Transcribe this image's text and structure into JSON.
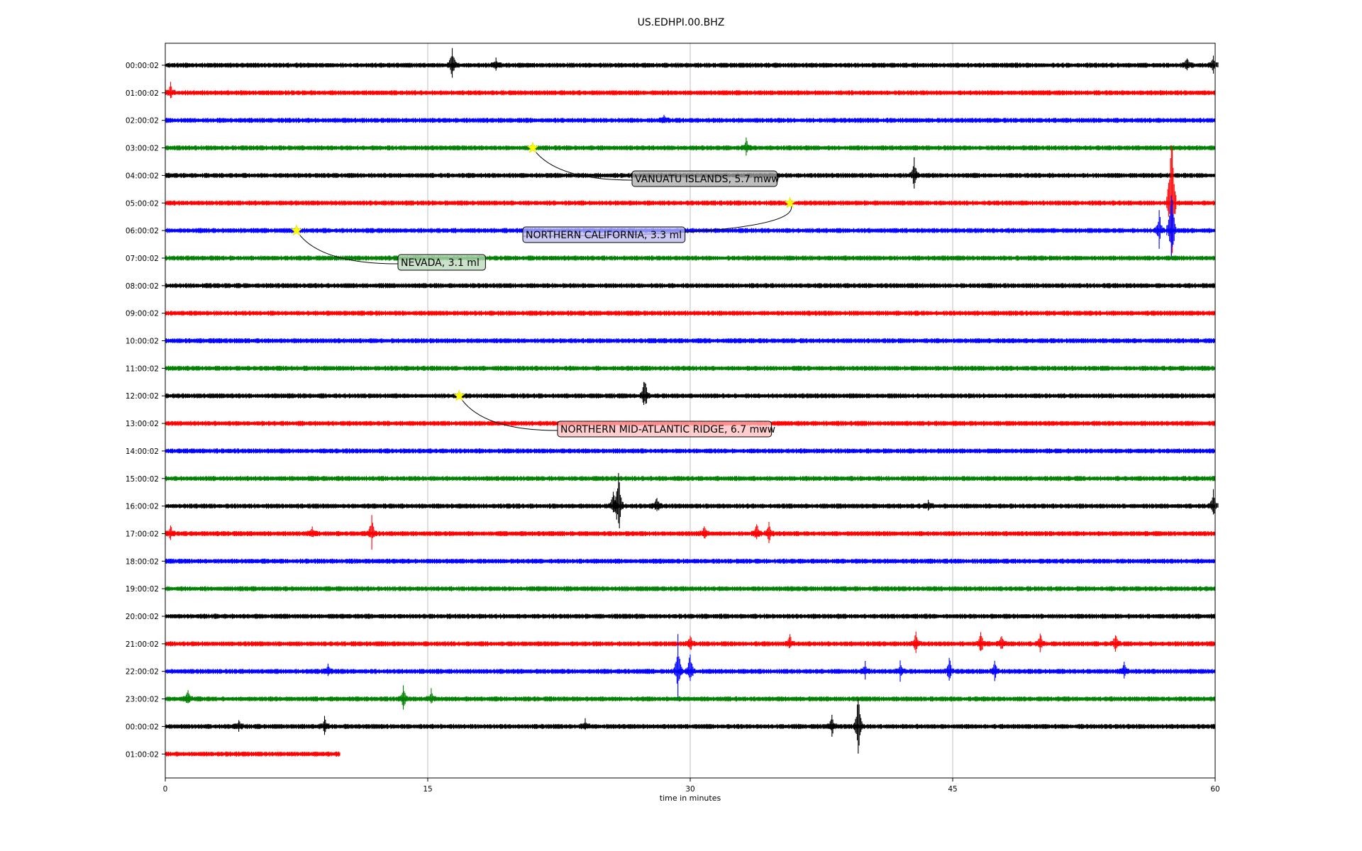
{
  "chart_data": {
    "type": "line",
    "title": "US.EDHPI.00.BHZ",
    "xlabel": "time in minutes",
    "ylabel": "",
    "xlim": [
      0,
      60
    ],
    "x_ticks": [
      0,
      15,
      30,
      45,
      60
    ],
    "grid": "vertical",
    "trace_colors": [
      "#000000",
      "#ff0000",
      "#0000ff",
      "#008000"
    ],
    "rows": [
      {
        "label": "00:00:02",
        "end_minute": 60,
        "events": [
          {
            "minute": 16.4,
            "amp": 1.0
          },
          {
            "minute": 18.9,
            "amp": 0.4
          },
          {
            "minute": 58.4,
            "amp": 0.5
          },
          {
            "minute": 59.9,
            "amp": 0.5
          }
        ]
      },
      {
        "label": "01:00:02",
        "end_minute": 60,
        "events": [
          {
            "minute": 0.3,
            "amp": 0.5
          }
        ]
      },
      {
        "label": "02:00:02",
        "end_minute": 60,
        "events": [
          {
            "minute": 28.5,
            "amp": 0.3
          }
        ]
      },
      {
        "label": "03:00:02",
        "end_minute": 60,
        "events": [
          {
            "minute": 33.2,
            "amp": 0.5
          }
        ]
      },
      {
        "label": "04:00:02",
        "end_minute": 60,
        "events": [
          {
            "minute": 42.8,
            "amp": 0.9
          }
        ]
      },
      {
        "label": "05:00:02",
        "end_minute": 60,
        "events": [
          {
            "minute": 57.5,
            "amp": 4.0
          }
        ]
      },
      {
        "label": "06:00:02",
        "end_minute": 60,
        "events": [
          {
            "minute": 56.8,
            "amp": 1.0
          },
          {
            "minute": 57.5,
            "amp": 2.5
          }
        ]
      },
      {
        "label": "07:00:02",
        "end_minute": 60,
        "events": []
      },
      {
        "label": "08:00:02",
        "end_minute": 60,
        "events": []
      },
      {
        "label": "09:00:02",
        "end_minute": 60,
        "events": []
      },
      {
        "label": "10:00:02",
        "end_minute": 60,
        "events": []
      },
      {
        "label": "11:00:02",
        "end_minute": 60,
        "events": []
      },
      {
        "label": "12:00:02",
        "end_minute": 60,
        "events": [
          {
            "minute": 27.4,
            "amp": 1.0
          }
        ]
      },
      {
        "label": "13:00:02",
        "end_minute": 60,
        "events": []
      },
      {
        "label": "14:00:02",
        "end_minute": 60,
        "events": []
      },
      {
        "label": "15:00:02",
        "end_minute": 60,
        "events": []
      },
      {
        "label": "16:00:02",
        "end_minute": 60,
        "events": [
          {
            "minute": 25.6,
            "amp": 0.8
          },
          {
            "minute": 25.9,
            "amp": 1.9
          },
          {
            "minute": 28.1,
            "amp": 0.5
          },
          {
            "minute": 43.6,
            "amp": 0.3
          },
          {
            "minute": 59.9,
            "amp": 0.8
          }
        ]
      },
      {
        "label": "17:00:02",
        "end_minute": 60,
        "events": [
          {
            "minute": 0.3,
            "amp": 0.5
          },
          {
            "minute": 8.4,
            "amp": 0.4
          },
          {
            "minute": 11.8,
            "amp": 0.9
          },
          {
            "minute": 30.8,
            "amp": 0.5
          },
          {
            "minute": 33.8,
            "amp": 0.6
          },
          {
            "minute": 34.5,
            "amp": 0.6
          }
        ]
      },
      {
        "label": "18:00:02",
        "end_minute": 60,
        "events": []
      },
      {
        "label": "19:00:02",
        "end_minute": 60,
        "events": []
      },
      {
        "label": "20:00:02",
        "end_minute": 60,
        "events": []
      },
      {
        "label": "21:00:02",
        "end_minute": 60,
        "events": [
          {
            "minute": 30.0,
            "amp": 0.5
          },
          {
            "minute": 35.7,
            "amp": 0.5
          },
          {
            "minute": 42.9,
            "amp": 0.6
          },
          {
            "minute": 46.6,
            "amp": 0.7
          },
          {
            "minute": 47.8,
            "amp": 0.5
          },
          {
            "minute": 50.0,
            "amp": 0.6
          },
          {
            "minute": 54.3,
            "amp": 0.6
          }
        ]
      },
      {
        "label": "22:00:02",
        "end_minute": 60,
        "events": [
          {
            "minute": 9.3,
            "amp": 0.4
          },
          {
            "minute": 29.3,
            "amp": 1.7
          },
          {
            "minute": 30.0,
            "amp": 1.0
          },
          {
            "minute": 40.0,
            "amp": 0.5
          },
          {
            "minute": 42.0,
            "amp": 0.5
          },
          {
            "minute": 44.8,
            "amp": 0.8
          },
          {
            "minute": 47.4,
            "amp": 0.6
          },
          {
            "minute": 54.8,
            "amp": 0.5
          }
        ]
      },
      {
        "label": "23:00:02",
        "end_minute": 60,
        "events": [
          {
            "minute": 1.3,
            "amp": 0.5
          },
          {
            "minute": 13.6,
            "amp": 0.7
          },
          {
            "minute": 15.2,
            "amp": 0.5
          }
        ]
      },
      {
        "label": "00:00:02",
        "end_minute": 60,
        "events": [
          {
            "minute": 4.2,
            "amp": 0.4
          },
          {
            "minute": 9.1,
            "amp": 0.5
          },
          {
            "minute": 24.0,
            "amp": 0.4
          },
          {
            "minute": 38.1,
            "amp": 0.6
          },
          {
            "minute": 39.6,
            "amp": 1.6
          }
        ]
      },
      {
        "label": "01:00:02",
        "end_minute": 10,
        "events": []
      }
    ],
    "annotations": [
      {
        "text": "VANUATU ISLANDS, 5.7 mww",
        "row": 3,
        "minute": 21.0,
        "box_color": "#a8a8a8"
      },
      {
        "text": "NORTHERN CALIFORNIA, 3.3 ml",
        "row": 5,
        "minute": 35.7,
        "box_color": "#b8b8f0"
      },
      {
        "text": "NEVADA, 3.1 ml",
        "row": 6,
        "minute": 7.5,
        "box_color": "#b8d8b8"
      },
      {
        "text": "NORTHERN MID-ATLANTIC RIDGE, 6.7 mww",
        "row": 12,
        "minute": 16.8,
        "box_color": "#ffbcbc"
      }
    ]
  }
}
